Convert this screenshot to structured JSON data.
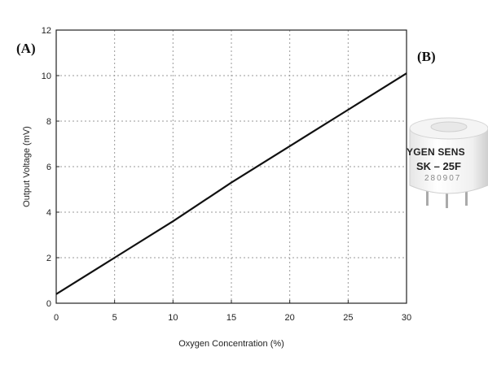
{
  "panels": {
    "a": "(A)",
    "b": "(B)"
  },
  "chart_data": {
    "type": "line",
    "xlabel": "Oxygen Concentration (%)",
    "ylabel": "Output Voltage (mV)",
    "xlim": [
      0,
      30
    ],
    "ylim": [
      0,
      12
    ],
    "x_ticks": [
      0,
      5,
      10,
      15,
      20,
      25,
      30
    ],
    "y_ticks": [
      0,
      2,
      4,
      6,
      8,
      10,
      12
    ],
    "grid": true,
    "series": [
      {
        "x": [
          0,
          5,
          10,
          15,
          20,
          25,
          30
        ],
        "y": [
          0.4,
          2.0,
          3.6,
          5.3,
          6.9,
          8.5,
          10.1
        ]
      }
    ]
  },
  "sensor_photo": {
    "line1": "YGEN SENS",
    "line2": "SK – 25F",
    "line3": "280907"
  },
  "colors": {
    "line": "#111111",
    "grid": "#9a9a9a",
    "axis": "#222222"
  }
}
